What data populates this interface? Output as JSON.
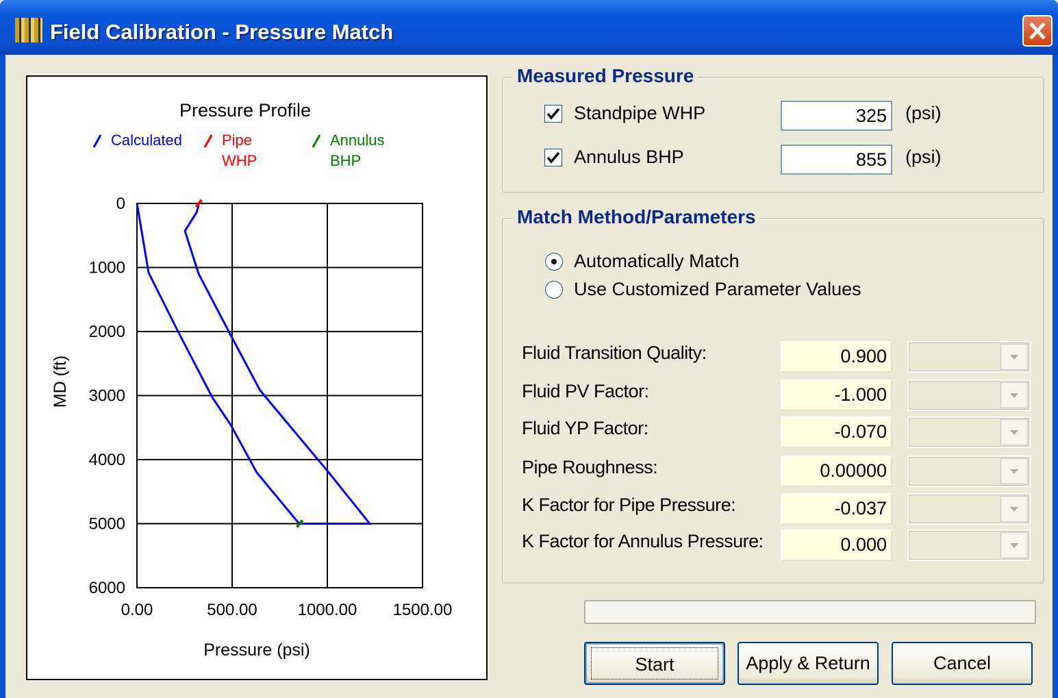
{
  "window": {
    "title": "Field Calibration - Pressure Match"
  },
  "chart_data": {
    "type": "line",
    "title": "Pressure Profile",
    "xlabel": "Pressure (psi)",
    "ylabel": "MD (ft)",
    "xlim": [
      0,
      1500
    ],
    "xticks": [
      {
        "value": 0,
        "label": "0.00"
      },
      {
        "value": 500,
        "label": "500.00"
      },
      {
        "value": 1000,
        "label": "1000.00"
      },
      {
        "value": 1500,
        "label": "1500.00"
      }
    ],
    "ylim": [
      0,
      6000
    ],
    "yticks": [
      0,
      1000,
      2000,
      3000,
      4000,
      5000,
      6000
    ],
    "y_inverted": true,
    "grid": true,
    "series": [
      {
        "name": "Calculated",
        "color": "#0000ff",
        "x": [
          0,
          61,
          209,
          396,
          493,
          629,
          852,
          1223,
          1007,
          917,
          647,
          493,
          324,
          252,
          313,
          324
        ],
        "y": [
          0,
          1080,
          1960,
          3030,
          3460,
          4200,
          5000,
          5000,
          4200,
          3880,
          2920,
          2060,
          1100,
          430,
          140,
          30
        ]
      },
      {
        "name": "Pipe WHP",
        "color": "#ff0000",
        "x": [
          325
        ],
        "y": [
          0
        ]
      },
      {
        "name": "Annulus BHP",
        "color": "#008000",
        "x": [
          855
        ],
        "y": [
          5000
        ]
      }
    ]
  },
  "measured": {
    "title": "Measured Pressure",
    "rows": [
      {
        "label": "Standpipe WHP",
        "value": "325",
        "unit": "(psi)",
        "checked": true
      },
      {
        "label": "Annulus BHP",
        "value": "855",
        "unit": "(psi)",
        "checked": true
      }
    ]
  },
  "match": {
    "title": "Match Method/Parameters",
    "options": [
      "Automatically Match",
      "Use Customized Parameter Values"
    ],
    "selected": 0,
    "parameters": [
      {
        "label": "Fluid Transition Quality:",
        "value": "0.900"
      },
      {
        "label": "Fluid PV Factor:",
        "value": "-1.000"
      },
      {
        "label": "Fluid YP Factor:",
        "value": "-0.070"
      },
      {
        "label": "Pipe Roughness:",
        "value": "0.00000"
      },
      {
        "label": "K Factor for Pipe Pressure:",
        "value": "-0.037"
      },
      {
        "label": "K Factor for Annulus Pressure:",
        "value": "0.000"
      }
    ]
  },
  "buttons": [
    "Start",
    "Apply & Return",
    "Cancel"
  ]
}
